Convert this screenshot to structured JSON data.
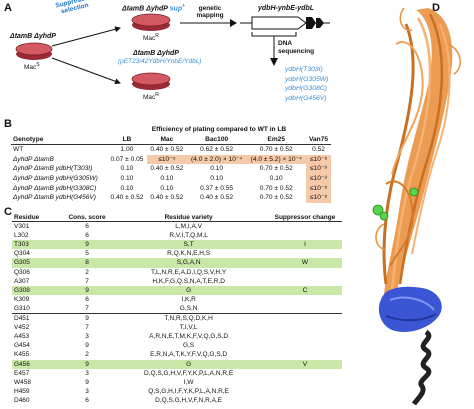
{
  "panels": {
    "a": "A",
    "b": "B",
    "c": "C",
    "d": "D"
  },
  "panelA": {
    "left_strain": "ΔtamB ΔyhdP",
    "left_pheno": "Mac",
    "left_sup": "S",
    "selection_label": "Suppressor selection",
    "top_strain": "ΔtamB ΔyhdP",
    "top_sup": "sup",
    "top_sup_mark": "+",
    "top_pheno": "Mac",
    "top_pheno_sup": "R",
    "bottom_strain": "ΔtamB ΔyhdP",
    "bottom_plasmid": "(pET23/42YdbH/YnbE/YdbL)",
    "bottom_pheno": "Mac",
    "bottom_pheno_sup": "R",
    "genetic_mapping": "genetic mapping",
    "operon": "ydbH-ynbE-ydbL",
    "dna_seq": "DNA sequencing",
    "mutants": [
      "ydbH(T303I)",
      "ydbH(G305W)",
      "ydbH(G308C)",
      "ydbH(G456V)"
    ]
  },
  "panelB": {
    "title": "Efficiency of plating compared to WT in LB",
    "headers": [
      "Genotype",
      "LB",
      "Mac",
      "Bac100",
      "Em25",
      "Van75"
    ],
    "rows": [
      {
        "g": "WT",
        "lb": "1.00",
        "mac": "0.40 ± 0.52",
        "bac": "0.62 ± 0.52",
        "em": "0.70 ± 0.52",
        "van": "0.52",
        "hl": []
      },
      {
        "g": "ΔyhdP ΔtamB",
        "lb": "0.07 ± 0.05",
        "mac": "≤10⁻⁵",
        "bac": "(4.0 ± 2.0) × 10⁻⁴",
        "em": "(4.0 ± 5.2) × 10⁻⁴",
        "van": "≤10⁻⁸",
        "hl": [
          "mac",
          "bac",
          "em",
          "van"
        ]
      },
      {
        "g": "ΔyhdP ΔtamB ydbH(T303I)",
        "lb": "0.10",
        "mac": "0.40 ± 0.52",
        "bac": "0.10",
        "em": "0.70 ± 0.52",
        "van": "≤10⁻⁸",
        "hl": [
          "van"
        ]
      },
      {
        "g": "ΔyhdP ΔtamB ydbH(G305W)",
        "lb": "0.10",
        "mac": "0.10",
        "bac": "0.10",
        "em": "0.10",
        "van": "≤10⁻⁸",
        "hl": [
          "van"
        ]
      },
      {
        "g": "ΔyhdP ΔtamB ydbH(G308C)",
        "lb": "0.10",
        "mac": "0.10",
        "bac": "0.37 ± 0.55",
        "em": "0.70 ± 0.52",
        "van": "≤10⁻⁸",
        "hl": [
          "van"
        ]
      },
      {
        "g": "ΔyhdP ΔtamB ydbH(G456V)",
        "lb": "0.40 ± 0.52",
        "mac": "0.40 ± 0.52",
        "bac": "0.40 ± 0.52",
        "em": "0.70 ± 0.52",
        "van": "≤10⁻⁸",
        "hl": [
          "van"
        ]
      }
    ]
  },
  "panelC": {
    "headers": [
      "Residue",
      "Cons. score",
      "Residue variety",
      "Suppressor change"
    ],
    "rows": [
      {
        "r": "V301",
        "s": "6",
        "v": "L,M,I,A,V",
        "c": "",
        "green": false,
        "sep": false
      },
      {
        "r": "L302",
        "s": "6",
        "v": "R,V,I,T,Q,M,L",
        "c": "",
        "green": false,
        "sep": false
      },
      {
        "r": "T303",
        "s": "9",
        "v": "S,T",
        "c": "I",
        "green": true,
        "sep": false
      },
      {
        "r": "Q304",
        "s": "5",
        "v": "R,Q,K,N,E,H,S",
        "c": "",
        "green": false,
        "sep": false
      },
      {
        "r": "G305",
        "s": "8",
        "v": "S,G,A,N",
        "c": "W",
        "green": true,
        "sep": false
      },
      {
        "r": "Q306",
        "s": "2",
        "v": "T,L,N,R,E,A,D,I,Q,S,V,H,Y",
        "c": "",
        "green": false,
        "sep": false
      },
      {
        "r": "A307",
        "s": "7",
        "v": "H,K,F,G,Q,S,N,A,T,E,R,D",
        "c": "",
        "green": false,
        "sep": false
      },
      {
        "r": "G308",
        "s": "9",
        "v": "G",
        "c": "C",
        "green": true,
        "sep": false
      },
      {
        "r": "K309",
        "s": "6",
        "v": "I,K,R",
        "c": "",
        "green": false,
        "sep": false
      },
      {
        "r": "G310",
        "s": "7",
        "v": "G,S,N",
        "c": "",
        "green": false,
        "sep": false
      },
      {
        "r": "D451",
        "s": "9",
        "v": "T,N,R,S,Q,D,K,H",
        "c": "",
        "green": false,
        "sep": true
      },
      {
        "r": "V452",
        "s": "7",
        "v": "T,I,V,L",
        "c": "",
        "green": false,
        "sep": false
      },
      {
        "r": "A453",
        "s": "3",
        "v": "A,R,N,E,T,M,K,F,V,Q,G,S,D",
        "c": "",
        "green": false,
        "sep": false
      },
      {
        "r": "G454",
        "s": "9",
        "v": "G,S",
        "c": "",
        "green": false,
        "sep": false
      },
      {
        "r": "K455",
        "s": "2",
        "v": "E,R,N,A,T,K,Y,F,V,Q,G,S,D",
        "c": "",
        "green": false,
        "sep": false
      },
      {
        "r": "G456",
        "s": "9",
        "v": "G",
        "c": "V",
        "green": true,
        "sep": false
      },
      {
        "r": "E457",
        "s": "3",
        "v": "D,Q,S,G,H,V,F,Y,K,P,L,A,N,R,E",
        "c": "",
        "green": false,
        "sep": false
      },
      {
        "r": "W458",
        "s": "9",
        "v": "I,W",
        "c": "",
        "green": false,
        "sep": false
      },
      {
        "r": "H459",
        "s": "3",
        "v": "Q,S,G,H,I,F,Y,K,P,L,A,N,R,E",
        "c": "",
        "green": false,
        "sep": false
      },
      {
        "r": "D460",
        "s": "6",
        "v": "D,Q,S,G,H,V,F,N,R,A,E",
        "c": "",
        "green": false,
        "sep": false
      }
    ]
  },
  "colors": {
    "orange": "#e9913f",
    "blue_domain": "#3a56d4",
    "green": "#56d44a",
    "highlight": "#f6c9a8",
    "row_green": "#c9e7a6"
  }
}
